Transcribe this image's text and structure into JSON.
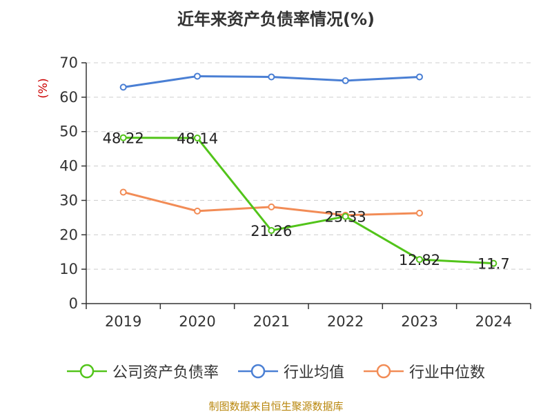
{
  "chart_data": {
    "type": "line",
    "title": "近年来资产负债率情况(%)",
    "ylabel": "(%)",
    "xlabel": "",
    "categories": [
      "2019",
      "2020",
      "2021",
      "2022",
      "2023",
      "2024"
    ],
    "ylim": [
      0,
      70
    ],
    "yticks": [
      0,
      10,
      20,
      30,
      40,
      50,
      60,
      70
    ],
    "grid": true,
    "legend_position": "bottom",
    "series": [
      {
        "name": "公司资产负债率",
        "color": "#52c41a",
        "values": [
          48.22,
          48.14,
          21.26,
          25.33,
          12.82,
          11.7
        ],
        "labels": [
          "48.22",
          "48.14",
          "21.26",
          "25.33",
          "12.82",
          "11.7"
        ]
      },
      {
        "name": "行业均值",
        "color": "#4a7fd4",
        "values": [
          62.9,
          66.1,
          65.9,
          64.8,
          65.9,
          null
        ]
      },
      {
        "name": "行业中位数",
        "color": "#f28c56",
        "values": [
          32.4,
          26.9,
          28.1,
          25.7,
          26.3,
          null
        ]
      }
    ]
  },
  "footer": {
    "source": "制图数据来自恒生聚源数据库"
  }
}
